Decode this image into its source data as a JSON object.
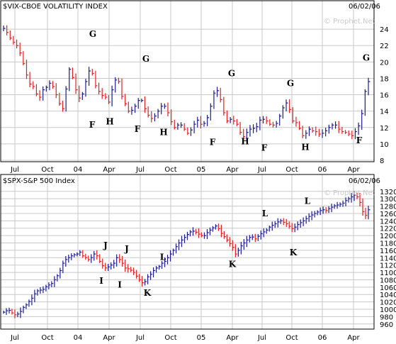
{
  "colors": {
    "up": "#1a1a8c",
    "down": "#e02020",
    "grid": "#c8c8c8",
    "frame": "#000000"
  },
  "chart_data": [
    {
      "type": "ohlc",
      "title": "$VIX-CBOE VOLATILITY INDEX",
      "date": "06/02/06",
      "watermark": "© Prophet.Net",
      "y_axis_position": "right",
      "ylim": [
        8,
        26
      ],
      "yticks": [
        8,
        10,
        12,
        14,
        16,
        18,
        20,
        22,
        24
      ],
      "xticks": [
        "Jul",
        "Oct",
        "04",
        "Apr",
        "Jul",
        "Oct",
        "05",
        "Apr",
        "Jul",
        "Oct",
        "06",
        "Apr"
      ],
      "grid": true,
      "series": [
        {
          "values": [
            24.1,
            23.6,
            22.9,
            22.4,
            22.0,
            21.1,
            19.8,
            18.4,
            17.3,
            17.0,
            16.1,
            15.7,
            16.6,
            16.9,
            17.4,
            17.0,
            16.0,
            14.9,
            14.3,
            16.7,
            19.1,
            18.1,
            16.6,
            15.6,
            16.1,
            17.6,
            18.9,
            18.6,
            17.1,
            16.4,
            15.9,
            15.7,
            15.1,
            16.6,
            17.8,
            17.6,
            15.8,
            14.9,
            14.0,
            14.1,
            14.6,
            15.3,
            15.3,
            14.3,
            13.5,
            13.1,
            13.4,
            14.0,
            14.6,
            14.6,
            13.8,
            12.7,
            12.0,
            12.3,
            12.3,
            11.8,
            11.3,
            11.7,
            12.4,
            12.9,
            12.4,
            12.5,
            13.2,
            14.6,
            16.2,
            16.5,
            15.4,
            13.8,
            12.8,
            13.0,
            12.8,
            12.4,
            11.4,
            10.9,
            11.4,
            11.8,
            11.9,
            12.1,
            12.9,
            13.0,
            12.8,
            12.4,
            12.3,
            12.5,
            13.4,
            14.4,
            15.0,
            14.2,
            12.8,
            12.6,
            11.9,
            11.0,
            11.3,
            11.8,
            11.6,
            11.5,
            11.2,
            11.3,
            11.6,
            12.0,
            12.3,
            12.3,
            11.8,
            11.5,
            11.4,
            11.2,
            11.0,
            11.5,
            12.2,
            13.7,
            16.4,
            17.6
          ]
        }
      ],
      "annotations": [
        {
          "label": "G",
          "date_label": "late Mar 04",
          "value": 22.7
        },
        {
          "label": "F",
          "date_label": "early Mar 04",
          "value": 13.0
        },
        {
          "label": "H",
          "date_label": "mid Apr 04",
          "value": 13.4
        },
        {
          "label": "G",
          "date_label": "mid Aug 04",
          "value": 19.7
        },
        {
          "label": "F",
          "date_label": "early Jul 04",
          "value": 12.5
        },
        {
          "label": "H",
          "date_label": "late Sep 04",
          "value": 12.1
        },
        {
          "label": "F",
          "date_label": "early Feb 05",
          "value": 10.9
        },
        {
          "label": "G",
          "date_label": "mid Apr 05",
          "value": 17.9
        },
        {
          "label": "H",
          "date_label": "early Jun 05",
          "value": 11.0
        },
        {
          "label": "F",
          "date_label": "early Jul 05",
          "value": 10.2
        },
        {
          "label": "G",
          "date_label": "mid Oct 05",
          "value": 16.7
        },
        {
          "label": "H",
          "date_label": "early Nov 05",
          "value": 10.3
        },
        {
          "label": "F",
          "date_label": "early May 06",
          "value": 11.1
        },
        {
          "label": "G",
          "date_label": "late May 06",
          "value": 19.8
        }
      ]
    },
    {
      "type": "ohlc",
      "title": "$SPX-S&P 500 Index",
      "date": "06/02/06",
      "watermark": "© Prophet.Net",
      "y_axis_position": "right",
      "ylim": [
        950,
        1335
      ],
      "yticks": [
        960,
        980,
        1000,
        1020,
        1040,
        1060,
        1080,
        1100,
        1120,
        1140,
        1160,
        1180,
        1200,
        1220,
        1240,
        1260,
        1280,
        1300,
        1320
      ],
      "xticks": [
        "Jul",
        "Oct",
        "04",
        "Apr",
        "Jul",
        "Oct",
        "05",
        "Apr",
        "Jul",
        "Oct",
        "06",
        "Apr"
      ],
      "grid": true,
      "series": [
        {
          "values": [
            992,
            996,
            997,
            990,
            985,
            987,
            994,
            1005,
            1012,
            1021,
            1030,
            1042,
            1050,
            1052,
            1054,
            1061,
            1066,
            1070,
            1080,
            1091,
            1105,
            1125,
            1135,
            1140,
            1145,
            1148,
            1150,
            1155,
            1145,
            1140,
            1135,
            1140,
            1150,
            1145,
            1130,
            1118,
            1112,
            1115,
            1120,
            1125,
            1140,
            1135,
            1125,
            1112,
            1110,
            1106,
            1100,
            1090,
            1080,
            1072,
            1075,
            1088,
            1095,
            1105,
            1112,
            1116,
            1125,
            1130,
            1140,
            1150,
            1160,
            1170,
            1180,
            1188,
            1195,
            1203,
            1210,
            1212,
            1209,
            1204,
            1200,
            1200,
            1208,
            1215,
            1221,
            1226,
            1219,
            1206,
            1197,
            1188,
            1178,
            1168,
            1150,
            1160,
            1172,
            1180,
            1188,
            1195,
            1196,
            1191,
            1198,
            1205,
            1210,
            1215,
            1223,
            1228,
            1232,
            1237,
            1240,
            1236,
            1232,
            1225,
            1219,
            1223,
            1230,
            1235,
            1240,
            1246,
            1252,
            1256,
            1260,
            1264,
            1268,
            1270,
            1268,
            1273,
            1277,
            1281,
            1283,
            1285,
            1288,
            1295,
            1300,
            1305,
            1310,
            1305,
            1290,
            1265,
            1255,
            1270
          ]
        }
      ],
      "annotations": [
        {
          "label": "J",
          "date_label": "mid Mar 04",
          "value": 1158
        },
        {
          "label": "I",
          "date_label": "mid Mar 04",
          "value": 1092
        },
        {
          "label": "I",
          "date_label": "early May 04",
          "value": 1082
        },
        {
          "label": "J",
          "date_label": "mid Jun 04",
          "value": 1148
        },
        {
          "label": "K",
          "date_label": "mid Aug 04",
          "value": 1060
        },
        {
          "label": "L",
          "date_label": "mid Sep 04",
          "value": 1126
        },
        {
          "label": "K",
          "date_label": "mid Apr 05",
          "value": 1138
        },
        {
          "label": "L",
          "date_label": "early Aug 05",
          "value": 1245
        },
        {
          "label": "K",
          "date_label": "mid Oct 05",
          "value": 1169
        },
        {
          "label": "L",
          "date_label": "late Dec 05",
          "value": 1278
        }
      ]
    }
  ]
}
